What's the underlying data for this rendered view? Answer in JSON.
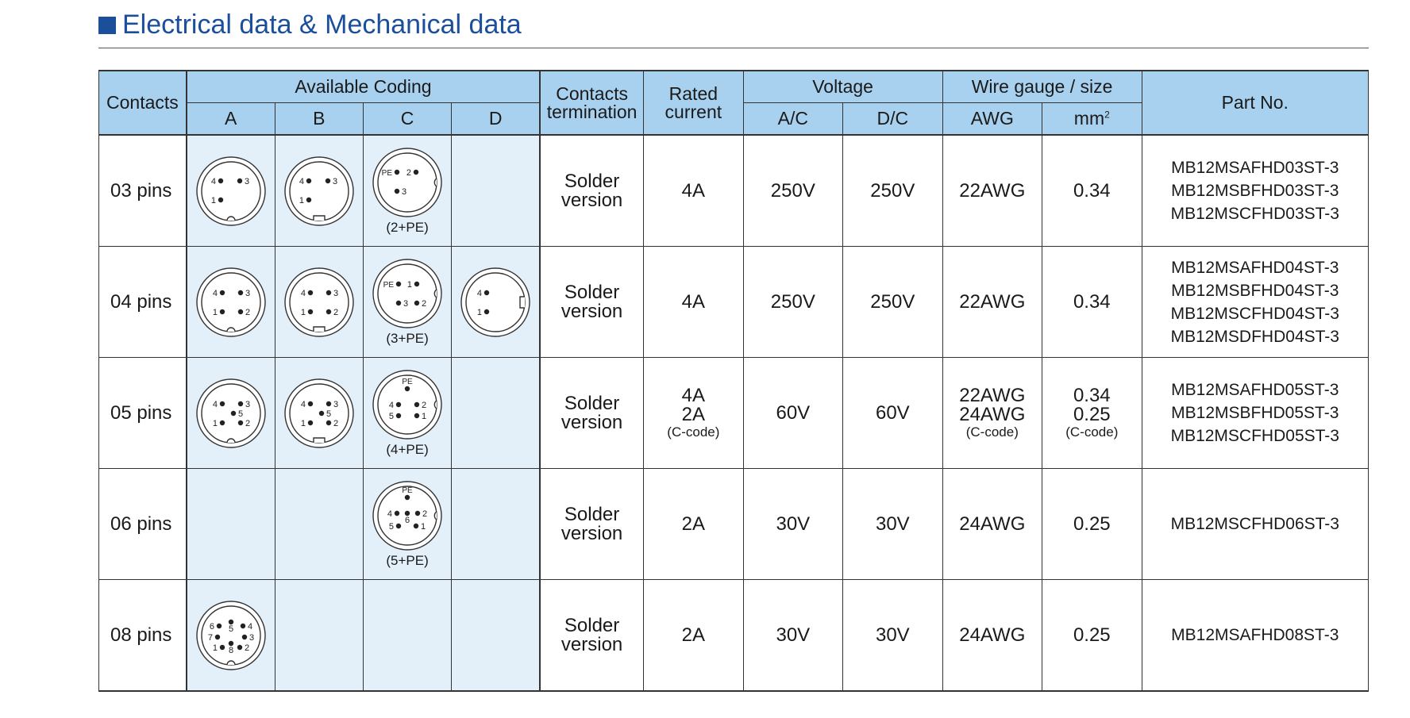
{
  "title": "Electrical data & Mechanical data",
  "headers": {
    "contacts": "Contacts",
    "available_coding": "Available Coding",
    "codes": [
      "A",
      "B",
      "C",
      "D"
    ],
    "contacts_termination_1": "Contacts",
    "contacts_termination_2": "termination",
    "rated_current_1": "Rated",
    "rated_current_2": "current",
    "voltage": "Voltage",
    "ac": "A/C",
    "dc": "D/C",
    "wire_gauge": "Wire gauge / size",
    "awg": "AWG",
    "mm": "mm",
    "mm_sup": "2",
    "part_no": "Part No."
  },
  "rows": [
    {
      "contacts": "03 pins",
      "coding_c_label": "(2+PE)",
      "termination_1": "Solder",
      "termination_2": "version",
      "current": [
        "4A"
      ],
      "current_note": "",
      "ac": "250V",
      "dc": "250V",
      "awg": [
        "22AWG"
      ],
      "awg_note": "",
      "mm": [
        "0.34"
      ],
      "mm_note": "",
      "parts": [
        "MB12MSAFHD03ST-3",
        "MB12MSBFHD03ST-3",
        "MB12MSCFHD03ST-3"
      ]
    },
    {
      "contacts": "04 pins",
      "coding_c_label": "(3+PE)",
      "termination_1": "Solder",
      "termination_2": "version",
      "current": [
        "4A"
      ],
      "current_note": "",
      "ac": "250V",
      "dc": "250V",
      "awg": [
        "22AWG"
      ],
      "awg_note": "",
      "mm": [
        "0.34"
      ],
      "mm_note": "",
      "parts": [
        "MB12MSAFHD04ST-3",
        "MB12MSBFHD04ST-3",
        "MB12MSCFHD04ST-3",
        "MB12MSDFHD04ST-3"
      ]
    },
    {
      "contacts": "05 pins",
      "coding_c_label": "(4+PE)",
      "termination_1": "Solder",
      "termination_2": "version",
      "current": [
        "4A",
        "2A"
      ],
      "current_note": "(C-code)",
      "ac": "60V",
      "dc": "60V",
      "awg": [
        "22AWG",
        "24AWG"
      ],
      "awg_note": "(C-code)",
      "mm": [
        "0.34",
        "0.25"
      ],
      "mm_note": "(C-code)",
      "parts": [
        "MB12MSAFHD05ST-3",
        "MB12MSBFHD05ST-3",
        "MB12MSCFHD05ST-3"
      ]
    },
    {
      "contacts": "06 pins",
      "coding_c_label": "(5+PE)",
      "termination_1": "Solder",
      "termination_2": "version",
      "current": [
        "2A"
      ],
      "current_note": "",
      "ac": "30V",
      "dc": "30V",
      "awg": [
        "24AWG"
      ],
      "awg_note": "",
      "mm": [
        "0.25"
      ],
      "mm_note": "",
      "parts": [
        "MB12MSCFHD06ST-3"
      ]
    },
    {
      "contacts": "08 pins",
      "coding_c_label": "",
      "termination_1": "Solder",
      "termination_2": "version",
      "current": [
        "2A"
      ],
      "current_note": "",
      "ac": "30V",
      "dc": "30V",
      "awg": [
        "24AWG"
      ],
      "awg_note": "",
      "mm": [
        "0.25"
      ],
      "mm_note": "",
      "parts": [
        "MB12MSAFHD08ST-3"
      ]
    }
  ],
  "pin_diagrams": {
    "r0_A": [
      {
        "t": "4",
        "side": "l"
      },
      {
        "t": "3",
        "side": "r"
      },
      {
        "t": "1",
        "side": "l"
      }
    ],
    "r0_B": [
      {
        "t": "4",
        "side": "l"
      },
      {
        "t": "3",
        "side": "r"
      },
      {
        "t": "1",
        "side": "l"
      }
    ],
    "r0_C": [
      {
        "t": "PE",
        "side": "l"
      },
      {
        "t": "2",
        "side": "l"
      },
      {
        "t": "3",
        "side": "r"
      }
    ],
    "r1_A": [
      {
        "t": "4",
        "side": "l"
      },
      {
        "t": "3",
        "side": "r"
      },
      {
        "t": "1",
        "side": "l"
      },
      {
        "t": "2",
        "side": "r"
      }
    ],
    "r1_B": [
      {
        "t": "4",
        "side": "l"
      },
      {
        "t": "3",
        "side": "r"
      },
      {
        "t": "1",
        "side": "l"
      },
      {
        "t": "2",
        "side": "r"
      }
    ],
    "r1_C": [
      {
        "t": "PE",
        "side": "l"
      },
      {
        "t": "1",
        "side": "l"
      },
      {
        "t": "3",
        "side": "r"
      },
      {
        "t": "2",
        "side": "r"
      }
    ],
    "r1_D": [
      {
        "t": "4",
        "side": "l"
      },
      {
        "t": "1",
        "side": "l"
      }
    ],
    "r2_A": [
      {
        "t": "4",
        "side": "l"
      },
      {
        "t": "3",
        "side": "r"
      },
      {
        "t": "5",
        "side": "r"
      },
      {
        "t": "1",
        "side": "l"
      },
      {
        "t": "2",
        "side": "r"
      }
    ],
    "r2_B": [
      {
        "t": "4",
        "side": "l"
      },
      {
        "t": "3",
        "side": "r"
      },
      {
        "t": "5",
        "side": "r"
      },
      {
        "t": "1",
        "side": "l"
      },
      {
        "t": "2",
        "side": "r"
      }
    ],
    "r2_C": [
      {
        "t": "PE",
        "side": "t"
      },
      {
        "t": "4",
        "side": "l"
      },
      {
        "t": "2",
        "side": "r"
      },
      {
        "t": "5",
        "side": "l"
      },
      {
        "t": "1",
        "side": "r"
      }
    ],
    "r3_C": [
      {
        "t": "PE",
        "side": "t"
      },
      {
        "t": "4",
        "side": "l"
      },
      {
        "t": "6",
        "side": "b"
      },
      {
        "t": "2",
        "side": "r"
      },
      {
        "t": "5",
        "side": "l"
      },
      {
        "t": "1",
        "side": "r"
      }
    ],
    "r4_A": [
      {
        "t": "6",
        "side": "l"
      },
      {
        "t": "5",
        "side": "b"
      },
      {
        "t": "4",
        "side": "r"
      },
      {
        "t": "7",
        "side": "l"
      },
      {
        "t": "3",
        "side": "r"
      },
      {
        "t": "1",
        "side": "l"
      },
      {
        "t": "8",
        "side": "b"
      },
      {
        "t": "2",
        "side": "r"
      }
    ]
  }
}
